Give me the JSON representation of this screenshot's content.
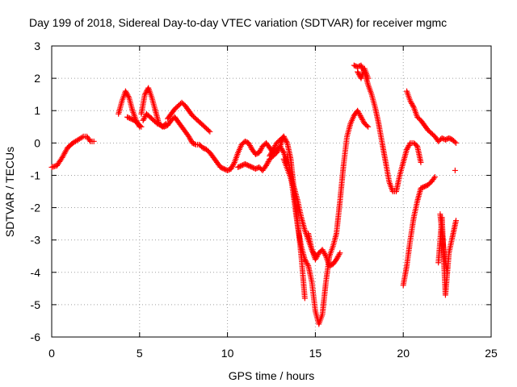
{
  "chart_data": {
    "type": "scatter",
    "title": "Day 199 of 2018, Sidereal Day-to-day VTEC variation (SDTVAR) for receiver mgmc",
    "xlabel": "GPS time / hours",
    "ylabel": "SDTVAR / TECUs",
    "xlim": [
      0,
      25
    ],
    "ylim": [
      -6,
      3
    ],
    "x_ticks": [
      "0",
      "5",
      "10",
      "15",
      "20",
      "25"
    ],
    "y_ticks": [
      "-6",
      "-5",
      "-4",
      "-3",
      "-2",
      "-1",
      "0",
      "1",
      "2",
      "3"
    ],
    "grid": true,
    "marker": "+",
    "color": "#ff0000",
    "segments": [
      {
        "x": [
          0.0,
          0.3,
          0.6,
          0.9,
          1.2,
          1.5,
          1.8,
          2.0,
          2.2,
          2.4
        ],
        "y": [
          -0.75,
          -0.7,
          -0.45,
          -0.15,
          0.0,
          0.1,
          0.2,
          0.2,
          0.05,
          0.05
        ]
      },
      {
        "x": [
          3.8,
          4.0,
          4.2,
          4.4,
          4.6,
          4.8,
          5.0
        ],
        "y": [
          0.9,
          1.3,
          1.6,
          1.4,
          1.0,
          0.7,
          0.5
        ]
      },
      {
        "x": [
          4.3,
          4.5,
          4.7,
          4.9,
          5.1
        ],
        "y": [
          0.8,
          0.75,
          0.7,
          0.6,
          0.5
        ]
      },
      {
        "x": [
          5.1,
          5.3,
          5.5,
          5.7,
          5.9,
          6.1,
          6.3,
          6.5
        ],
        "y": [
          0.9,
          1.5,
          1.7,
          1.4,
          1.0,
          0.6,
          0.5,
          0.6
        ]
      },
      {
        "x": [
          5.2,
          5.4,
          5.6,
          5.8,
          6.0,
          6.2,
          6.4,
          6.6,
          6.8,
          7.0,
          7.2,
          7.4,
          7.6,
          7.8,
          8.0,
          8.2,
          8.4,
          8.6,
          8.8,
          9.0,
          9.2,
          9.4,
          9.6,
          9.8,
          10.0,
          10.2
        ],
        "y": [
          0.7,
          0.9,
          0.8,
          0.7,
          0.6,
          0.55,
          0.5,
          0.55,
          0.7,
          0.8,
          0.65,
          0.5,
          0.35,
          0.2,
          0.0,
          -0.05,
          -0.05,
          -0.15,
          -0.2,
          -0.3,
          -0.45,
          -0.6,
          -0.75,
          -0.8,
          -0.85,
          -0.8
        ]
      },
      {
        "x": [
          6.6,
          6.8,
          7.0,
          7.2,
          7.4,
          7.6,
          7.8,
          8.0,
          8.2,
          8.4,
          8.6,
          8.8,
          9.0
        ],
        "y": [
          0.75,
          0.9,
          1.05,
          1.15,
          1.25,
          1.15,
          1.0,
          0.85,
          0.75,
          0.65,
          0.55,
          0.45,
          0.35
        ]
      },
      {
        "x": [
          10.2,
          10.4,
          10.6,
          10.8,
          11.0,
          11.2,
          11.4,
          11.6,
          11.8,
          12.0,
          12.2,
          12.4,
          12.6,
          12.8,
          13.0,
          13.2,
          13.4
        ],
        "y": [
          -0.8,
          -0.6,
          -0.3,
          -0.05,
          0.05,
          0.0,
          -0.2,
          -0.35,
          -0.3,
          -0.1,
          0.0,
          -0.15,
          -0.3,
          -0.2,
          -0.1,
          -0.3,
          -0.6
        ]
      },
      {
        "x": [
          10.6,
          10.8,
          11.0,
          11.2,
          11.4,
          11.6,
          11.8,
          12.0,
          12.2,
          12.4,
          12.6,
          12.8,
          13.0,
          13.2
        ],
        "y": [
          -0.75,
          -0.7,
          -0.65,
          -0.7,
          -0.75,
          -0.8,
          -0.75,
          -0.85,
          -0.7,
          -0.5,
          -0.4,
          -0.3,
          -0.1,
          0.2
        ]
      },
      {
        "x": [
          12.4,
          12.6,
          12.8,
          13.0,
          13.2,
          13.4,
          13.6,
          13.8,
          14.0,
          14.2,
          14.4
        ],
        "y": [
          -0.4,
          -0.2,
          0.0,
          0.1,
          0.2,
          0.0,
          -0.5,
          -1.5,
          -2.5,
          -3.5,
          -4.8
        ]
      },
      {
        "x": [
          13.2,
          13.4,
          13.6,
          13.8,
          14.0,
          14.2,
          14.4,
          14.6,
          14.8,
          15.0
        ],
        "y": [
          -0.5,
          -0.8,
          -1.1,
          -1.4,
          -1.8,
          -2.3,
          -2.7,
          -3.0,
          -3.3,
          -3.5
        ]
      },
      {
        "x": [
          13.4,
          13.6,
          13.8,
          14.0,
          14.2,
          14.4,
          14.6,
          14.8,
          15.0,
          15.2,
          15.4,
          15.6,
          15.8,
          16.0,
          16.2,
          16.4,
          16.6,
          16.8,
          17.0,
          17.2,
          17.4,
          17.6,
          17.8,
          18.0
        ],
        "y": [
          -0.4,
          -1.0,
          -1.8,
          -2.6,
          -3.2,
          -3.6,
          -3.8,
          -4.3,
          -5.2,
          -5.6,
          -5.3,
          -4.3,
          -3.5,
          -3.2,
          -2.8,
          -1.8,
          -0.7,
          0.2,
          0.6,
          0.85,
          1.0,
          0.8,
          0.6,
          0.5
        ]
      },
      {
        "x": [
          14.6,
          14.8,
          15.0,
          15.2,
          15.4,
          15.6,
          15.8,
          16.0,
          16.2,
          16.4
        ],
        "y": [
          -2.8,
          -3.3,
          -3.6,
          -3.4,
          -3.3,
          -3.5,
          -3.8,
          -3.75,
          -3.6,
          -3.4
        ]
      },
      {
        "x": [
          17.2,
          17.4,
          17.6,
          17.8,
          18.0,
          18.2,
          18.4,
          18.6,
          18.8,
          19.0,
          19.2,
          19.4,
          19.6,
          19.8,
          20.0,
          20.2,
          20.4,
          20.6,
          20.8,
          21.0
        ],
        "y": [
          2.4,
          2.35,
          2.4,
          2.2,
          1.8,
          1.5,
          1.1,
          0.6,
          0.0,
          -0.6,
          -1.2,
          -1.5,
          -1.5,
          -1.0,
          -0.6,
          -0.2,
          0.0,
          0.0,
          -0.1,
          -0.6
        ]
      },
      {
        "x": [
          17.4,
          17.6,
          17.8,
          18.0
        ],
        "y": [
          2.2,
          2.0,
          2.3,
          2.0
        ]
      },
      {
        "x": [
          20.0,
          20.2,
          20.4,
          20.6,
          20.8,
          21.0,
          21.2,
          21.4,
          21.6,
          21.8
        ],
        "y": [
          -4.4,
          -3.8,
          -3.0,
          -2.3,
          -1.8,
          -1.4,
          -1.35,
          -1.3,
          -1.2,
          -1.05
        ]
      },
      {
        "x": [
          20.2,
          20.4,
          20.6,
          20.8,
          21.0,
          21.2,
          21.4,
          21.6,
          21.8,
          22.0,
          22.2,
          22.4,
          22.6,
          22.8,
          23.0
        ],
        "y": [
          1.6,
          1.3,
          1.1,
          0.8,
          0.7,
          0.55,
          0.4,
          0.3,
          0.2,
          0.05,
          0.15,
          0.1,
          0.15,
          0.1,
          0.0
        ]
      },
      {
        "x": [
          22.0,
          22.2,
          22.4,
          22.6,
          22.8,
          23.0
        ],
        "y": [
          -3.7,
          -2.3,
          -4.7,
          -3.4,
          -2.9,
          -2.4
        ]
      },
      {
        "x": [
          22.1,
          22.3,
          22.5
        ],
        "y": [
          -2.2,
          -3.3,
          -4.0
        ]
      },
      {
        "x": [
          22.95
        ],
        "y": [
          -0.85
        ]
      }
    ]
  }
}
